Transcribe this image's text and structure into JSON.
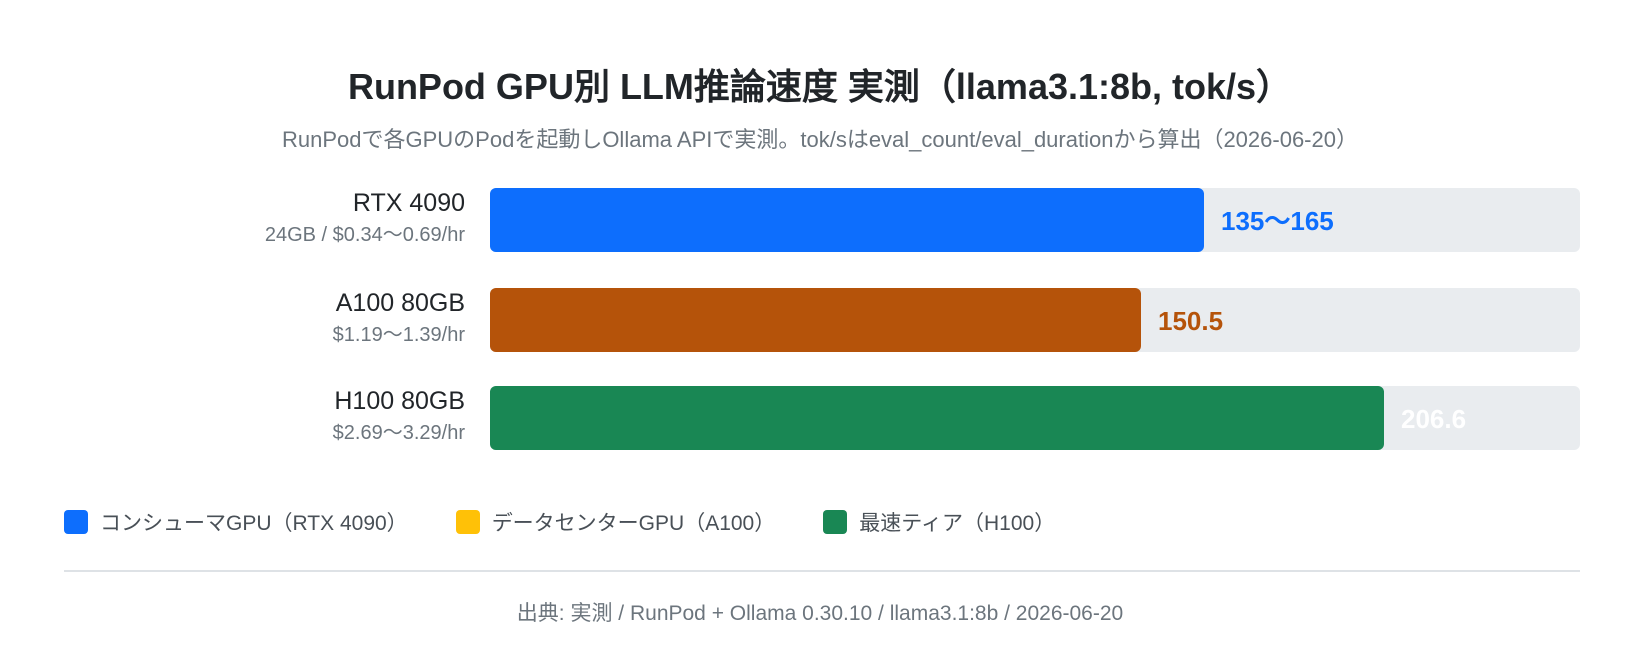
{
  "chart_data": {
    "type": "bar",
    "orientation": "horizontal",
    "title": "RunPod GPU別 LLM推論速度 実測（llama3.1:8b, tok/s）",
    "subtitle": "RunPodで各GPUのPodを起動しOllama APIで実測。tok/sはeval_count/eval_durationから算出（2026-06-20）",
    "xlim": [
      0,
      252
    ],
    "grid": false,
    "legend_position": "bottom-left",
    "bars": [
      {
        "name": "RTX 4090",
        "detail": "24GB / $0.34〜0.69/hr",
        "value": 165,
        "range": [
          135,
          165
        ],
        "value_label": "135〜165",
        "color": "#0d6efd",
        "label_color": "#0d6efd"
      },
      {
        "name": "A100 80GB",
        "detail": "$1.19〜1.39/hr",
        "value": 150.5,
        "value_label": "150.5",
        "color": "#b5530a",
        "label_color": "#b5530a"
      },
      {
        "name": "H100 80GB",
        "detail": "$2.69〜3.29/hr",
        "value": 206.6,
        "value_label": "206.6",
        "color": "#198754",
        "label_color": "#ffffff"
      }
    ],
    "legend": [
      {
        "label": "コンシューマGPU（RTX 4090）",
        "color": "#0d6efd"
      },
      {
        "label": "データセンターGPU（A100）",
        "color": "#ffc107"
      },
      {
        "label": "最速ティア（H100）",
        "color": "#198754"
      }
    ],
    "source": "出典: 実測 / RunPod + Ollama 0.30.10 / llama3.1:8b / 2026-06-20"
  }
}
